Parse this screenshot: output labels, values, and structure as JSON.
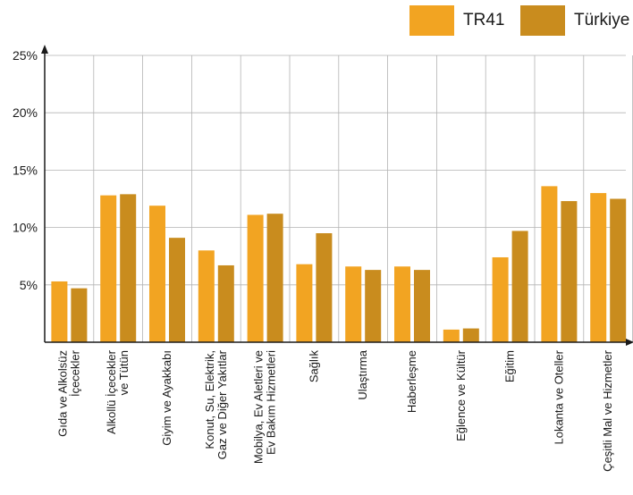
{
  "chart_data": {
    "type": "bar",
    "categories": [
      [
        "Gıda ve Alkolsüz",
        "İçecekler"
      ],
      [
        "Alkollü İçecekler",
        "ve Tütün"
      ],
      [
        "Giyim ve Ayakkabı"
      ],
      [
        "Konut, Su, Elektrik,",
        "Gaz ve Diğer Yakıtlar"
      ],
      [
        "Mobilya, Ev Aletleri ve",
        "Ev Bakım Hizmetleri"
      ],
      [
        "Sağlık"
      ],
      [
        "Ulaştırma"
      ],
      [
        "Haberleşme"
      ],
      [
        "Eğlence ve Kültür"
      ],
      [
        "Eğitim"
      ],
      [
        "Lokanta ve Oteller"
      ],
      [
        "Çeşitli Mal ve Hizmetler"
      ]
    ],
    "series": [
      {
        "name": "TR41",
        "color": "#F2A422",
        "values": [
          5.3,
          12.8,
          11.9,
          8.0,
          11.1,
          6.8,
          6.6,
          6.6,
          1.1,
          7.4,
          13.6,
          13.0
        ]
      },
      {
        "name": "Türkiye",
        "color": "#C98C1E",
        "values": [
          4.7,
          12.9,
          9.1,
          6.7,
          11.2,
          9.5,
          6.3,
          6.3,
          1.2,
          9.7,
          12.3,
          12.5
        ]
      }
    ],
    "yticks": [
      "5%",
      "10%",
      "15%",
      "20%",
      "25%"
    ],
    "ytick_values": [
      5,
      10,
      15,
      20,
      25
    ],
    "ylim": [
      0,
      25
    ],
    "grid": true,
    "legend_position": "top-right"
  }
}
